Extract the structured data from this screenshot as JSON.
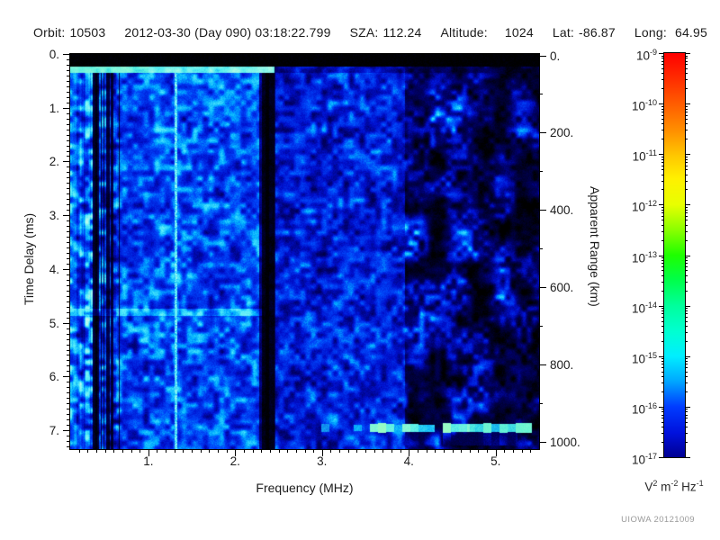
{
  "header": {
    "fields": [
      {
        "label": "Orbit:",
        "value": "10503"
      },
      {
        "label": "",
        "value": "2012-03-30 (Day 090) 03:18:22.799"
      },
      {
        "label": "SZA:",
        "value": "112.24"
      },
      {
        "label": "Altitude:",
        "value": "1024"
      },
      {
        "label": "Lat:",
        "value": "-86.87"
      },
      {
        "label": "Long:",
        "value": "64.95"
      }
    ]
  },
  "credit": "UIOWA 20121009",
  "chart_data": {
    "type": "heatmap",
    "subtype": "radar-sounder-spectrogram",
    "x_axis": {
      "label": "Frequency (MHz)",
      "range": [
        0.1,
        5.5
      ],
      "major_tick_values": [
        1,
        2,
        3,
        4,
        5
      ],
      "major_tick_labels": [
        "1.",
        "2.",
        "3.",
        "4.",
        "5."
      ],
      "minor_step": 0.1
    },
    "y_axis_left": {
      "label": "Time Delay (ms)",
      "range": [
        0,
        7.35
      ],
      "major_tick_values": [
        0,
        1,
        2,
        3,
        4,
        5,
        6,
        7
      ],
      "major_tick_labels": [
        "0.",
        "1.",
        "2.",
        "3.",
        "4.",
        "5.",
        "6.",
        "7."
      ],
      "minor_step": 0.1,
      "direction": "downward"
    },
    "y_axis_right": {
      "label": "Apparent Range (km)",
      "range": [
        0,
        1020
      ],
      "major_tick_values": [
        0,
        200,
        400,
        600,
        800,
        1000
      ],
      "major_tick_labels": [
        "0.",
        "200.",
        "400.",
        "600.",
        "800.",
        "1000."
      ],
      "minor_step": 100
    },
    "colorbar": {
      "scale": "log",
      "exponents": [
        -9,
        -10,
        -11,
        -12,
        -13,
        -14,
        -15,
        -16,
        -17
      ],
      "unit_parts": [
        [
          "V",
          "2"
        ],
        [
          "m",
          "-2"
        ],
        [
          "Hz",
          "-1"
        ]
      ],
      "gradient_stops": [
        [
          "#ff0000",
          0
        ],
        [
          "#ff2a00",
          6
        ],
        [
          "#ff5c00",
          12.5
        ],
        [
          "#ff8e00",
          19
        ],
        [
          "#ffc400",
          25
        ],
        [
          "#fff000",
          31
        ],
        [
          "#e8ff00",
          37.5
        ],
        [
          "#86ff00",
          44
        ],
        [
          "#1eff00",
          50
        ],
        [
          "#00ff48",
          56
        ],
        [
          "#00ff9c",
          62.5
        ],
        [
          "#00ffd2",
          69
        ],
        [
          "#00eeff",
          75
        ],
        [
          "#00aaff",
          81
        ],
        [
          "#003cff",
          87.5
        ],
        [
          "#0011dd",
          94
        ],
        [
          "#000092",
          100
        ]
      ]
    },
    "features": {
      "top_black_band_ms": [
        0,
        0.22
      ],
      "transmit_pulse_line_ms": 0.28,
      "transmit_pulse_freq_extent_mhz": [
        0.1,
        2.45
      ],
      "streaky_noise_band_mhz": [
        0.1,
        0.66
      ],
      "bright_vertical_line_mhz": 1.31,
      "dark_vertical_bands_mhz": [
        0.38,
        2.36
      ],
      "faint_horizontal_band_ms": 4.8,
      "echo_trace": {
        "time_delay_ms": 6.95,
        "freq_start_mhz": 3.0,
        "freq_end_mhz": 5.45,
        "apparent_range_km": 960
      },
      "dark_patchy_region_mhz": [
        3.95,
        5.5
      ]
    }
  }
}
